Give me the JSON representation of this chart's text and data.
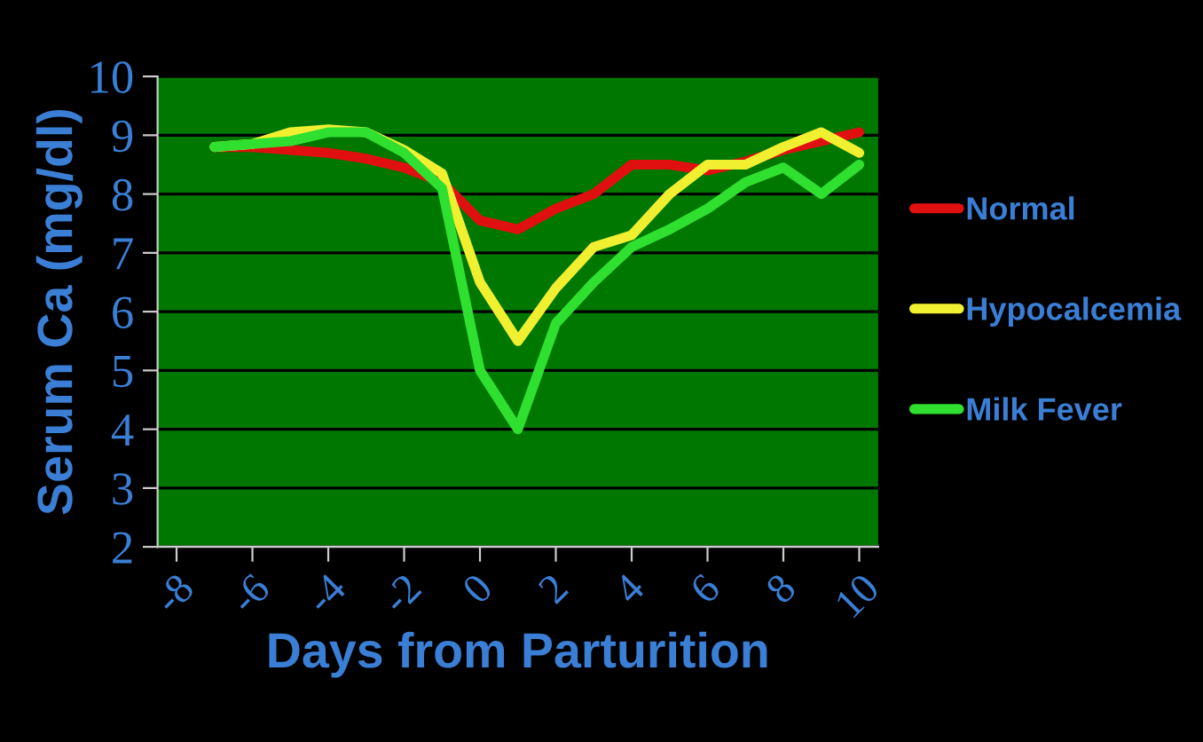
{
  "chart_data": {
    "type": "line",
    "xlabel": "Days from Parturition",
    "ylabel": "Serum Ca (mg/dl)",
    "x": [
      -7,
      -6,
      -5,
      -4,
      -3,
      -2,
      -1,
      0,
      1,
      2,
      3,
      4,
      5,
      6,
      7,
      8,
      9,
      10
    ],
    "series": [
      {
        "name": "Normal",
        "color": "#e01010",
        "values": [
          8.8,
          8.8,
          8.75,
          8.7,
          8.6,
          8.45,
          8.2,
          7.55,
          7.4,
          7.75,
          8.0,
          8.5,
          8.5,
          8.4,
          8.55,
          8.75,
          8.9,
          9.05
        ]
      },
      {
        "name": "Hypocalcemia",
        "color": "#f0f030",
        "values": [
          8.8,
          8.85,
          9.05,
          9.1,
          9.05,
          8.75,
          8.35,
          6.5,
          5.5,
          6.4,
          7.1,
          7.3,
          8.0,
          8.5,
          8.5,
          8.8,
          9.05,
          8.7
        ]
      },
      {
        "name": "Milk Fever",
        "color": "#30e030",
        "values": [
          8.8,
          8.85,
          8.9,
          9.05,
          9.05,
          8.7,
          8.1,
          5.0,
          4.0,
          5.8,
          6.5,
          7.1,
          7.4,
          7.75,
          8.2,
          8.45,
          8.0,
          8.5
        ]
      }
    ],
    "xlim": [
      -8.5,
      10.5
    ],
    "xticks": [
      -8,
      -6,
      -4,
      -2,
      0,
      2,
      4,
      6,
      8,
      10
    ],
    "ylim": [
      2,
      10
    ],
    "yticks": [
      2,
      3,
      4,
      5,
      6,
      7,
      8,
      9,
      10
    ],
    "grid": "y",
    "legend": "right",
    "marker": "none",
    "line_style": "solid"
  }
}
